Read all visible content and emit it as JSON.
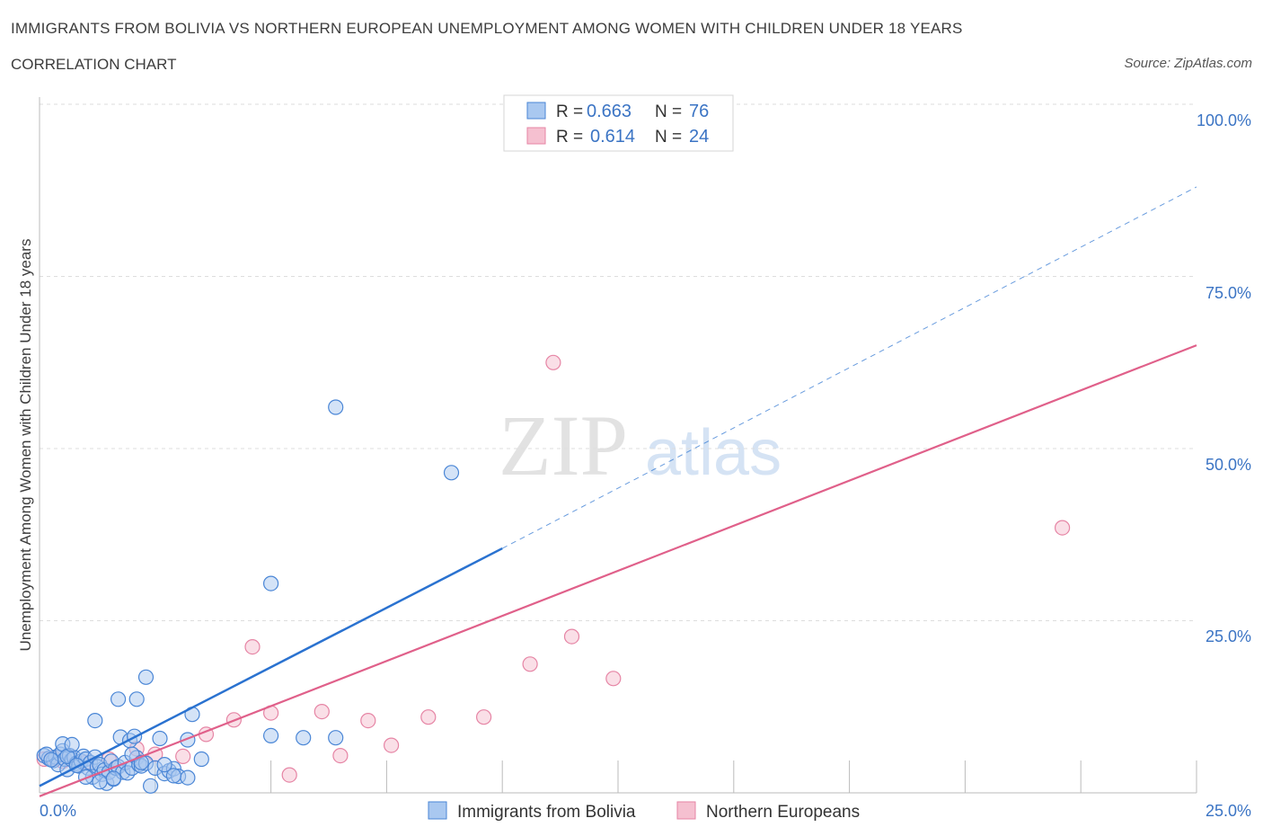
{
  "title": "IMMIGRANTS FROM BOLIVIA VS NORTHERN EUROPEAN UNEMPLOYMENT AMONG WOMEN WITH CHILDREN UNDER 18 YEARS",
  "subtitle": "CORRELATION CHART",
  "source": "Source: ZipAtlas.com",
  "watermark": {
    "zip": "ZIP",
    "atlas": "atlas"
  },
  "colors": {
    "blue_fill": "#a9c8f0",
    "blue_stroke": "#4a86d6",
    "blue_line": "#2a72d0",
    "pink_fill": "#f5c0d0",
    "pink_stroke": "#e685a5",
    "pink_line": "#e0608a",
    "tick_text": "#3b74c4",
    "grid": "#dddddd"
  },
  "legend_top": [
    {
      "r_label": "R =",
      "r_value": "0.663",
      "n_label": "N =",
      "n_value": "76"
    },
    {
      "r_label": "R =",
      "r_value": "0.614",
      "n_label": "N =",
      "n_value": "24"
    }
  ],
  "chart_data": {
    "type": "scatter",
    "title": "IMMIGRANTS FROM BOLIVIA VS NORTHERN EUROPEAN UNEMPLOYMENT AMONG WOMEN WITH CHILDREN UNDER 18 YEARS",
    "subtitle": "CORRELATION CHART",
    "xlabel": "",
    "ylabel": "Unemployment Among Women with Children Under 18 years",
    "xlim": [
      0,
      25
    ],
    "ylim": [
      0,
      100
    ],
    "x_ticks": [
      "0.0%",
      "25.0%"
    ],
    "y_ticks": [
      "25.0%",
      "50.0%",
      "75.0%",
      "100.0%"
    ],
    "grid": true,
    "legend_position": "top-center and bottom",
    "series": [
      {
        "name": "Immigrants from Bolivia",
        "color": "#a9c8f0",
        "r": 0.663,
        "n": 76,
        "trend": {
          "x0": 0,
          "y0": 1.0,
          "x1": 10.0,
          "y1": 35.5,
          "dashed_to_x": 25.0,
          "dashed_to_y": 88.0
        },
        "points": [
          [
            0.1,
            5.4
          ],
          [
            0.2,
            5.0
          ],
          [
            0.3,
            4.7
          ],
          [
            0.35,
            5.2
          ],
          [
            0.4,
            4.1
          ],
          [
            0.45,
            5.6
          ],
          [
            0.5,
            6.1
          ],
          [
            0.55,
            4.9
          ],
          [
            0.6,
            3.4
          ],
          [
            0.65,
            5.4
          ],
          [
            0.7,
            4.8
          ],
          [
            0.75,
            5.1
          ],
          [
            0.8,
            4.3
          ],
          [
            0.85,
            3.9
          ],
          [
            0.9,
            4.6
          ],
          [
            0.95,
            5.3
          ],
          [
            1.0,
            4.9
          ],
          [
            1.05,
            3.6
          ],
          [
            1.1,
            4.4
          ],
          [
            1.15,
            2.3
          ],
          [
            1.2,
            5.2
          ],
          [
            1.25,
            3.8
          ],
          [
            1.3,
            4.1
          ],
          [
            1.35,
            2.7
          ],
          [
            1.4,
            3.3
          ],
          [
            1.45,
            1.4
          ],
          [
            1.5,
            3.0
          ],
          [
            1.55,
            4.6
          ],
          [
            1.6,
            2.0
          ],
          [
            1.65,
            3.6
          ],
          [
            1.7,
            3.8
          ],
          [
            1.75,
            8.1
          ],
          [
            1.8,
            3.0
          ],
          [
            1.85,
            4.4
          ],
          [
            1.9,
            2.9
          ],
          [
            1.95,
            7.6
          ],
          [
            2.0,
            3.6
          ],
          [
            2.05,
            8.2
          ],
          [
            2.1,
            5.1
          ],
          [
            2.15,
            4.1
          ],
          [
            2.2,
            3.9
          ],
          [
            2.3,
            4.3
          ],
          [
            2.4,
            1.0
          ],
          [
            2.5,
            3.6
          ],
          [
            2.6,
            7.9
          ],
          [
            2.7,
            2.8
          ],
          [
            2.8,
            3.2
          ],
          [
            2.9,
            3.5
          ],
          [
            3.0,
            2.4
          ],
          [
            3.2,
            2.2
          ],
          [
            3.3,
            11.4
          ],
          [
            3.5,
            4.9
          ],
          [
            1.2,
            10.5
          ],
          [
            1.7,
            13.6
          ],
          [
            2.1,
            13.6
          ],
          [
            2.3,
            16.8
          ],
          [
            3.2,
            7.7
          ],
          [
            5.0,
            30.4
          ],
          [
            5.0,
            8.3
          ],
          [
            5.7,
            8.0
          ],
          [
            6.4,
            56.0
          ],
          [
            6.4,
            8.0
          ],
          [
            8.9,
            46.5
          ],
          [
            0.15,
            5.6
          ],
          [
            0.25,
            4.8
          ],
          [
            0.5,
            7.1
          ],
          [
            0.6,
            5.3
          ],
          [
            0.7,
            7.0
          ],
          [
            1.0,
            2.3
          ],
          [
            1.3,
            1.6
          ],
          [
            1.6,
            2.1
          ],
          [
            2.0,
            5.6
          ],
          [
            2.2,
            4.4
          ],
          [
            2.7,
            4.1
          ],
          [
            2.9,
            2.5
          ],
          [
            0.8,
            4.0
          ]
        ]
      },
      {
        "name": "Northern Europeans",
        "color": "#f5c0d0",
        "r": 0.614,
        "n": 24,
        "trend": {
          "x0": 0,
          "y0": -0.5,
          "x1": 25.0,
          "y1": 65.0
        },
        "points": [
          [
            0.1,
            4.9
          ],
          [
            0.3,
            5.1
          ],
          [
            0.5,
            4.6
          ],
          [
            1.0,
            4.4
          ],
          [
            1.5,
            4.9
          ],
          [
            2.1,
            6.4
          ],
          [
            2.5,
            5.6
          ],
          [
            3.1,
            5.3
          ],
          [
            3.6,
            8.5
          ],
          [
            4.2,
            10.6
          ],
          [
            4.6,
            21.2
          ],
          [
            5.0,
            11.6
          ],
          [
            5.4,
            2.6
          ],
          [
            6.1,
            11.8
          ],
          [
            6.5,
            5.4
          ],
          [
            7.1,
            10.5
          ],
          [
            7.6,
            6.9
          ],
          [
            8.4,
            11.0
          ],
          [
            9.6,
            11.0
          ],
          [
            10.6,
            18.7
          ],
          [
            11.1,
            62.5
          ],
          [
            11.5,
            22.7
          ],
          [
            12.4,
            16.6
          ],
          [
            22.1,
            38.5
          ]
        ]
      }
    ]
  },
  "bottom_legend": [
    {
      "label": "Immigrants from Bolivia"
    },
    {
      "label": "Northern Europeans"
    }
  ]
}
